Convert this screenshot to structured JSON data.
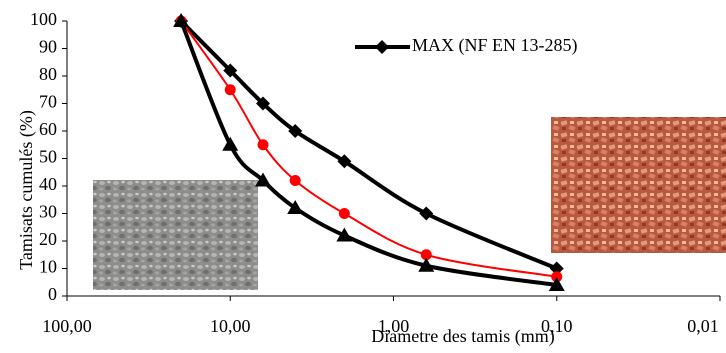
{
  "chart_data": {
    "type": "line",
    "xlabel": "Diametre des tamis (mm)",
    "ylabel": "Tamisats cumulés (%)",
    "x": [
      20,
      10,
      6.3,
      4,
      2,
      0.63,
      0.1
    ],
    "series": [
      {
        "name": "MAX (NF EN 13-285)",
        "color": "#000000",
        "marker": "diamond",
        "values": [
          100,
          82,
          70,
          60,
          49,
          30,
          10
        ]
      },
      {
        "color": "#ff0000",
        "marker": "circle",
        "values": [
          100,
          75,
          55,
          42,
          30,
          15,
          7
        ]
      },
      {
        "color": "#000000",
        "marker": "triangle",
        "values": [
          100,
          55,
          42,
          32,
          22,
          11,
          4
        ]
      }
    ],
    "xscale": "log",
    "xlim": [
      100,
      0.01
    ],
    "xticks": [
      {
        "value": 100,
        "label": "100,00"
      },
      {
        "value": 10,
        "label": "10,00"
      },
      {
        "value": 1,
        "label": "1,00"
      },
      {
        "value": 0.1,
        "label": "0,10"
      },
      {
        "value": 0.01,
        "label": "0,01"
      }
    ],
    "ylim": [
      0,
      100
    ],
    "yticks": [
      0,
      10,
      20,
      30,
      40,
      50,
      60,
      70,
      80,
      90,
      100
    ],
    "legend": "top-right"
  }
}
